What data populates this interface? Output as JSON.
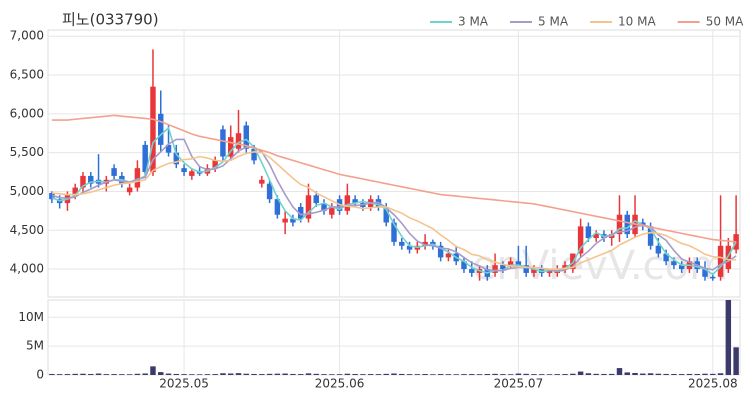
{
  "chart_data": {
    "type": "candlestick",
    "title": "피노(033790)",
    "watermark": "enVievV.com",
    "categories": [
      null,
      null,
      null,
      null,
      null,
      null,
      null,
      null,
      null,
      null,
      null,
      null,
      null,
      null,
      null,
      null,
      null,
      "2025.05",
      null,
      null,
      null,
      null,
      null,
      null,
      null,
      null,
      null,
      null,
      null,
      null,
      null,
      null,
      null,
      null,
      null,
      null,
      null,
      "2025.06",
      null,
      null,
      null,
      null,
      null,
      null,
      null,
      null,
      null,
      null,
      null,
      null,
      null,
      null,
      null,
      null,
      null,
      null,
      null,
      null,
      null,
      null,
      "2025.07",
      null,
      null,
      null,
      null,
      null,
      null,
      null,
      null,
      null,
      null,
      null,
      null,
      null,
      null,
      null,
      null,
      null,
      null,
      null,
      null,
      null,
      null,
      null,
      null,
      "2025.08",
      null,
      null,
      null
    ],
    "open": [
      4980,
      4900,
      4850,
      4950,
      5050,
      5200,
      5150,
      5100,
      5300,
      5200,
      4990,
      5050,
      5600,
      5250,
      6000,
      5600,
      5500,
      5300,
      5200,
      5260,
      5230,
      5300,
      5800,
      5450,
      5550,
      5850,
      5550,
      5100,
      5100,
      4900,
      4600,
      4650,
      4800,
      4650,
      4950,
      4850,
      4700,
      4900,
      4750,
      4900,
      4850,
      4800,
      4900,
      4800,
      4600,
      4350,
      4300,
      4250,
      4300,
      4350,
      4300,
      4150,
      4200,
      4100,
      4000,
      3950,
      4000,
      3950,
      4050,
      4050,
      4100,
      4050,
      3950,
      4000,
      3950,
      3950,
      4000,
      4000,
      4200,
      4550,
      4400,
      4450,
      4400,
      4450,
      4700,
      4450,
      4600,
      4550,
      4300,
      4200,
      4100,
      4050,
      4000,
      4100,
      4000,
      3900,
      3900,
      4000,
      4250
    ],
    "high": [
      5000,
      4950,
      5000,
      5100,
      5250,
      5250,
      5480,
      5200,
      5350,
      5250,
      5100,
      5400,
      5650,
      6830,
      6300,
      5850,
      5600,
      5350,
      5300,
      5320,
      5350,
      5450,
      5850,
      5850,
      6050,
      5900,
      5600,
      5200,
      5150,
      4950,
      4750,
      4700,
      4850,
      5100,
      5000,
      4900,
      4850,
      4950,
      5100,
      4950,
      4900,
      4950,
      4950,
      4850,
      4650,
      4400,
      4350,
      4350,
      4450,
      4380,
      4350,
      4250,
      4300,
      4150,
      4100,
      4050,
      4050,
      4200,
      4100,
      4150,
      4300,
      4300,
      4050,
      4050,
      4000,
      4050,
      4100,
      4200,
      4650,
      4600,
      4500,
      4500,
      4500,
      4950,
      4750,
      4950,
      4650,
      4600,
      4400,
      4250,
      4150,
      4100,
      4150,
      4150,
      4100,
      3950,
      4950,
      4400,
      4950
    ],
    "low": [
      4850,
      4780,
      4750,
      4900,
      5000,
      5050,
      5050,
      5000,
      5150,
      5050,
      4950,
      5000,
      5200,
      5200,
      5500,
      5450,
      5300,
      5200,
      5150,
      5200,
      5200,
      5250,
      5400,
      5400,
      5500,
      5500,
      5350,
      5050,
      4850,
      4650,
      4450,
      4550,
      4600,
      4600,
      4800,
      4700,
      4650,
      4700,
      4700,
      4800,
      4750,
      4750,
      4750,
      4550,
      4300,
      4250,
      4200,
      4200,
      4250,
      4250,
      4100,
      4100,
      4050,
      3950,
      3900,
      3850,
      3850,
      3900,
      3950,
      4000,
      4050,
      3900,
      3900,
      3900,
      3900,
      3900,
      3950,
      3950,
      4150,
      4350,
      4350,
      4350,
      4300,
      4350,
      4400,
      4400,
      4500,
      4250,
      4150,
      4050,
      4000,
      3950,
      3950,
      3950,
      3850,
      3850,
      3850,
      3950,
      4200
    ],
    "close": [
      4900,
      4850,
      4950,
      5050,
      5200,
      5100,
      5100,
      5150,
      5200,
      5100,
      5050,
      5300,
      5250,
      6350,
      5600,
      5500,
      5350,
      5250,
      5260,
      5230,
      5300,
      5400,
      5450,
      5700,
      5750,
      5550,
      5400,
      5150,
      4900,
      4700,
      4650,
      4600,
      4650,
      4950,
      4850,
      4750,
      4800,
      4750,
      4950,
      4850,
      4800,
      4900,
      4800,
      4600,
      4350,
      4300,
      4250,
      4300,
      4350,
      4300,
      4150,
      4200,
      4100,
      4000,
      3950,
      4000,
      3900,
      4050,
      4000,
      4100,
      4050,
      3950,
      4000,
      3950,
      3980,
      4000,
      4050,
      4200,
      4550,
      4400,
      4450,
      4400,
      4450,
      4700,
      4450,
      4700,
      4550,
      4300,
      4200,
      4100,
      4050,
      4000,
      4100,
      4000,
      3900,
      3880,
      4300,
      4300,
      4450
    ],
    "up_color": "#e8363a",
    "down_color": "#2f6fd8",
    "series": [
      {
        "name": "3 MA",
        "color": "#6fd3cc",
        "values": [
          4920,
          4880,
          4900,
          4950,
          5070,
          5120,
          5130,
          5120,
          5150,
          5150,
          5120,
          5150,
          5200,
          5630,
          5730,
          5820,
          5480,
          5370,
          5290,
          5250,
          5260,
          5310,
          5380,
          5520,
          5630,
          5670,
          5570,
          5370,
          5150,
          4920,
          4750,
          4650,
          4630,
          4730,
          4820,
          4850,
          4800,
          4770,
          4830,
          4850,
          4870,
          4850,
          4830,
          4770,
          4580,
          4420,
          4300,
          4280,
          4300,
          4320,
          4270,
          4220,
          4150,
          4100,
          4020,
          3980,
          3950,
          3980,
          3980,
          4050,
          4050,
          4030,
          4000,
          3970,
          3980,
          3990,
          4010,
          4080,
          4270,
          4380,
          4470,
          4420,
          4430,
          4520,
          4530,
          4620,
          4570,
          4520,
          4350,
          4200,
          4120,
          4050,
          4050,
          4030,
          4000,
          3930,
          4030,
          4170,
          4350
        ]
      },
      {
        "name": "5 MA",
        "color": "#a99bc9",
        "values": [
          4950,
          4920,
          4910,
          4930,
          4990,
          5030,
          5080,
          5120,
          5150,
          5130,
          5120,
          5160,
          5180,
          5410,
          5510,
          5610,
          5670,
          5670,
          5450,
          5320,
          5280,
          5290,
          5330,
          5420,
          5520,
          5570,
          5570,
          5510,
          5350,
          5140,
          4960,
          4800,
          4700,
          4710,
          4730,
          4760,
          4800,
          4800,
          4820,
          4820,
          4830,
          4850,
          4860,
          4790,
          4700,
          4590,
          4460,
          4360,
          4310,
          4300,
          4270,
          4260,
          4220,
          4150,
          4080,
          4040,
          3990,
          3980,
          3980,
          4010,
          4020,
          4020,
          4020,
          4010,
          3990,
          3970,
          3990,
          4030,
          4150,
          4230,
          4330,
          4400,
          4450,
          4480,
          4490,
          4540,
          4570,
          4540,
          4440,
          4370,
          4240,
          4130,
          4090,
          4050,
          4010,
          3990,
          4060,
          4100,
          4170
        ]
      },
      {
        "name": "10 MA",
        "color": "#f5c48e",
        "values": [
          4980,
          4970,
          4960,
          4960,
          4970,
          4990,
          5020,
          5050,
          5080,
          5100,
          5110,
          5130,
          5150,
          5270,
          5320,
          5360,
          5380,
          5410,
          5420,
          5450,
          5430,
          5400,
          5390,
          5400,
          5450,
          5490,
          5510,
          5500,
          5440,
          5350,
          5260,
          5170,
          5090,
          5050,
          4980,
          4930,
          4880,
          4830,
          4810,
          4800,
          4780,
          4790,
          4800,
          4800,
          4760,
          4720,
          4660,
          4620,
          4570,
          4520,
          4440,
          4370,
          4290,
          4250,
          4190,
          4170,
          4120,
          4090,
          4060,
          4040,
          4030,
          4020,
          4020,
          4010,
          4000,
          4000,
          4010,
          4020,
          4080,
          4120,
          4160,
          4200,
          4240,
          4310,
          4360,
          4410,
          4450,
          4470,
          4460,
          4430,
          4380,
          4330,
          4300,
          4250,
          4190,
          4160,
          4150,
          4120,
          4120
        ]
      },
      {
        "name": "50 MA",
        "color": "#f4a08e",
        "values": [
          5920,
          5920,
          5920,
          5930,
          5940,
          5950,
          5960,
          5970,
          5980,
          5970,
          5960,
          5950,
          5940,
          5930,
          5900,
          5860,
          5820,
          5780,
          5740,
          5710,
          5690,
          5670,
          5650,
          5630,
          5610,
          5590,
          5560,
          5530,
          5500,
          5460,
          5430,
          5400,
          5370,
          5340,
          5310,
          5280,
          5250,
          5220,
          5200,
          5180,
          5160,
          5140,
          5120,
          5100,
          5080,
          5060,
          5040,
          5020,
          5000,
          4980,
          4960,
          4950,
          4940,
          4930,
          4920,
          4910,
          4900,
          4890,
          4880,
          4870,
          4860,
          4850,
          4840,
          4820,
          4800,
          4780,
          4760,
          4740,
          4720,
          4700,
          4680,
          4660,
          4640,
          4620,
          4600,
          4580,
          4560,
          4540,
          4520,
          4500,
          4480,
          4460,
          4440,
          4420,
          4400,
          4380,
          4370,
          4360,
          4350
        ]
      }
    ],
    "ylim": [
      3640,
      7080
    ],
    "yticks": [
      {
        "value": 4000,
        "label": "4,000"
      },
      {
        "value": 4500,
        "label": "4,500"
      },
      {
        "value": 5000,
        "label": "5,000"
      },
      {
        "value": 5500,
        "label": "5,500"
      },
      {
        "value": 6000,
        "label": "6,000"
      },
      {
        "value": 6500,
        "label": "6,500"
      },
      {
        "value": 7000,
        "label": "7,000"
      }
    ],
    "volume": [
      180000,
      150000,
      160000,
      200000,
      220000,
      170000,
      250000,
      150000,
      160000,
      140000,
      130000,
      210000,
      260000,
      1500000,
      500000,
      250000,
      180000,
      150000,
      130000,
      120000,
      140000,
      160000,
      300000,
      260000,
      320000,
      220000,
      180000,
      160000,
      200000,
      230000,
      250000,
      180000,
      160000,
      280000,
      200000,
      150000,
      130000,
      140000,
      220000,
      170000,
      150000,
      160000,
      150000,
      200000,
      260000,
      180000,
      150000,
      140000,
      170000,
      130000,
      160000,
      140000,
      130000,
      150000,
      160000,
      140000,
      170000,
      200000,
      150000,
      130000,
      250000,
      200000,
      150000,
      140000,
      130000,
      150000,
      160000,
      220000,
      600000,
      300000,
      200000,
      180000,
      190000,
      1200000,
      450000,
      350000,
      250000,
      300000,
      220000,
      180000,
      170000,
      160000,
      180000,
      170000,
      220000,
      200000,
      300000,
      13000000,
      4800000
    ],
    "volume_color": "#3b3a6b",
    "volume_ylim": [
      0,
      13000000
    ],
    "volume_yticks": [
      0,
      {
        "value": 5000000,
        "label": "5M"
      },
      {
        "value": 10000000,
        "label": "10M"
      }
    ],
    "grid": true
  }
}
